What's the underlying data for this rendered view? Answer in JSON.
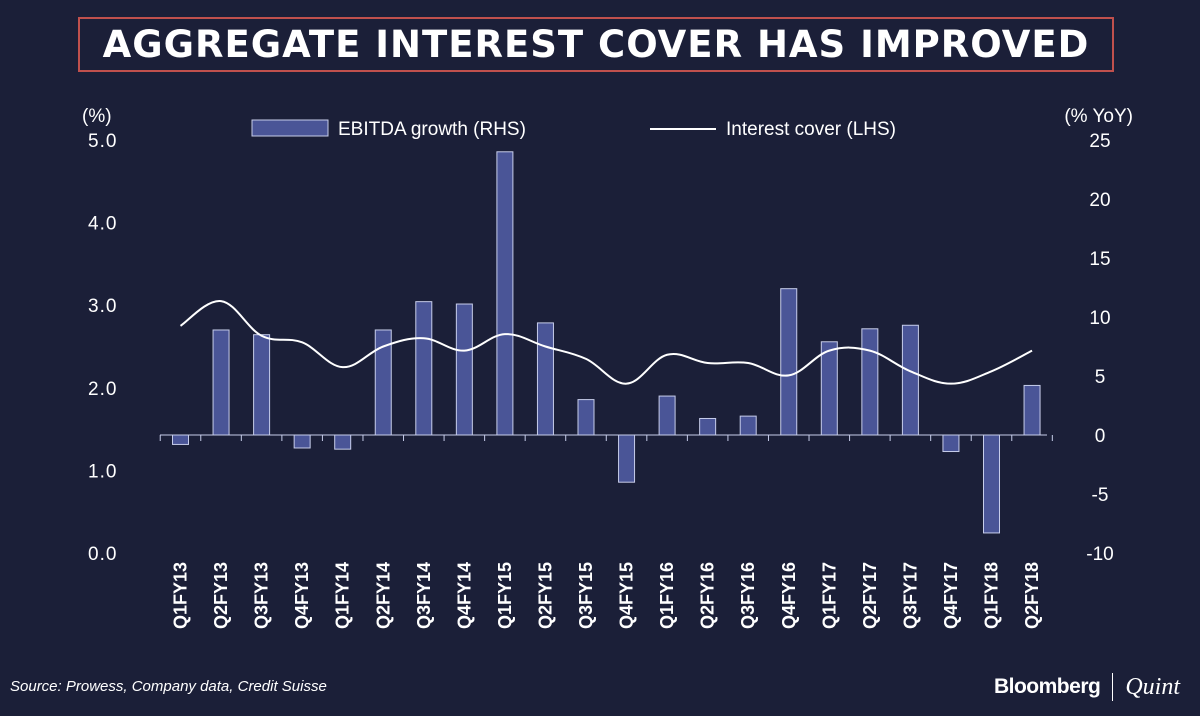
{
  "title": "AGGREGATE INTEREST COVER HAS IMPROVED",
  "source": "Source: Prowess, Company data, Credit Suisse",
  "brand": {
    "name1": "Bloomberg",
    "name2": "Quint"
  },
  "colors": {
    "background": "#1b1f38",
    "bar_fill": "#4a5597",
    "bar_stroke": "#c7cdea",
    "line": "#ffffff",
    "title_border": "#c0504d"
  },
  "chart_data": {
    "type": "bar+line",
    "left_axis": {
      "unit": "(%)",
      "ylim": [
        0,
        5
      ],
      "ticks": [
        0,
        1,
        2,
        3,
        4,
        5
      ],
      "tick_labels": [
        "0.0",
        "1.0",
        "2.0",
        "3.0",
        "4.0",
        "5.0"
      ]
    },
    "right_axis": {
      "unit": "(% YoY)",
      "ylim": [
        -10,
        25
      ],
      "ticks": [
        -10,
        -5,
        0,
        5,
        10,
        15,
        20,
        25
      ],
      "tick_labels": [
        "-10",
        "-5",
        "0",
        "5",
        "10",
        "15",
        "20",
        "25"
      ]
    },
    "categories": [
      "Q1FY13",
      "Q2FY13",
      "Q3FY13",
      "Q4FY13",
      "Q1FY14",
      "Q2FY14",
      "Q3FY14",
      "Q4FY14",
      "Q1FY15",
      "Q2FY15",
      "Q3FY15",
      "Q4FY15",
      "Q1FY16",
      "Q2FY16",
      "Q3FY16",
      "Q4FY16",
      "Q1FY17",
      "Q2FY17",
      "Q3FY17",
      "Q4FY17",
      "Q1FY18",
      "Q2FY18"
    ],
    "series": [
      {
        "name": "EBITDA growth (RHS)",
        "type": "bar",
        "axis": "right",
        "values": [
          -0.8,
          8.9,
          8.5,
          -1.1,
          -1.2,
          8.9,
          11.3,
          11.1,
          24.0,
          9.5,
          3.0,
          -4.0,
          3.3,
          1.4,
          1.6,
          12.4,
          7.9,
          9.0,
          9.3,
          -1.4,
          -8.3,
          4.2
        ]
      },
      {
        "name": "Interest cover (LHS)",
        "type": "line",
        "axis": "left",
        "values": [
          2.75,
          3.05,
          2.63,
          2.55,
          2.25,
          2.5,
          2.6,
          2.45,
          2.65,
          2.5,
          2.35,
          2.05,
          2.4,
          2.3,
          2.3,
          2.15,
          2.45,
          2.45,
          2.2,
          2.05,
          2.2,
          2.45
        ]
      }
    ]
  }
}
